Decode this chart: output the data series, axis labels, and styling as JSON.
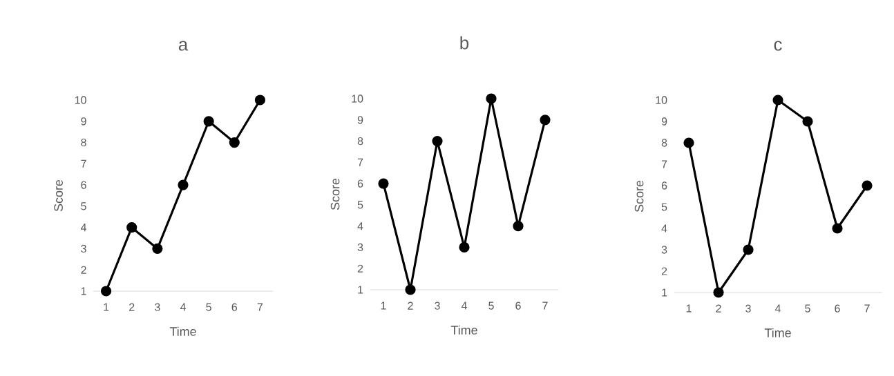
{
  "chart_data": [
    {
      "type": "line",
      "title": "a",
      "xlabel": "Time",
      "ylabel": "Score",
      "categories": [
        "1",
        "2",
        "3",
        "4",
        "5",
        "6",
        "7"
      ],
      "ylim": [
        1,
        10
      ],
      "yticks": [
        1,
        2,
        3,
        4,
        5,
        6,
        7,
        8,
        9,
        10
      ],
      "marker": "circle",
      "line_style": "solid",
      "series": [
        {
          "color": "#000000",
          "values": [
            1,
            4,
            3,
            6,
            9,
            8,
            10
          ]
        }
      ]
    },
    {
      "type": "line",
      "title": "b",
      "xlabel": "Time",
      "ylabel": "Score",
      "categories": [
        "1",
        "2",
        "3",
        "4",
        "5",
        "6",
        "7"
      ],
      "ylim": [
        1,
        10
      ],
      "yticks": [
        1,
        2,
        3,
        4,
        5,
        6,
        7,
        8,
        9,
        10
      ],
      "marker": "circle",
      "line_style": "solid",
      "series": [
        {
          "color": "#000000",
          "values": [
            6,
            1,
            8,
            3,
            10,
            4,
            9
          ]
        }
      ]
    },
    {
      "type": "line",
      "title": "c",
      "xlabel": "Time",
      "ylabel": "Score",
      "categories": [
        "1",
        "2",
        "3",
        "4",
        "5",
        "6",
        "7"
      ],
      "ylim": [
        1,
        10
      ],
      "yticks": [
        1,
        2,
        3,
        4,
        5,
        6,
        7,
        8,
        9,
        10
      ],
      "marker": "circle",
      "line_style": "solid",
      "series": [
        {
          "color": "#000000",
          "values": [
            8,
            1,
            3,
            10,
            9,
            4,
            6
          ]
        }
      ]
    }
  ]
}
